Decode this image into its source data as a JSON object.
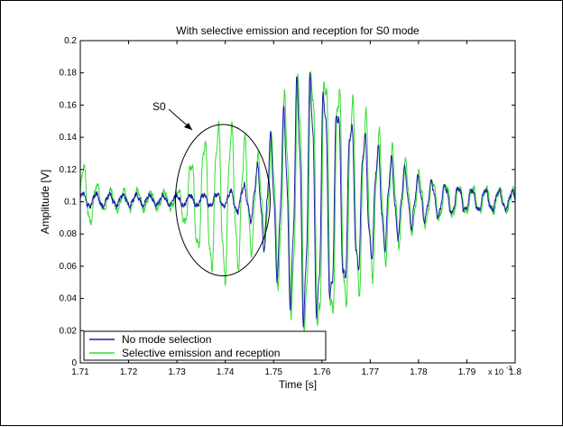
{
  "chart_data": {
    "type": "line",
    "title": "With selective emission and reception for S0 mode",
    "xlabel": "Time [s]",
    "ylabel": "Amplitude [V]",
    "x_multiplier_label": "x 10",
    "x_multiplier_exponent": "-3",
    "xlim": [
      1.71,
      1.8
    ],
    "ylim": [
      0,
      0.2
    ],
    "x_ticks": [
      "1.71",
      "1.72",
      "1.73",
      "1.74",
      "1.75",
      "1.76",
      "1.77",
      "1.78",
      "1.79",
      "1.8"
    ],
    "y_ticks": [
      "0",
      "0.02",
      "0.04",
      "0.06",
      "0.08",
      "0.1",
      "0.12",
      "0.14",
      "0.16",
      "0.18",
      "0.2"
    ],
    "grid": false,
    "legend_position": "bottom-left",
    "series": [
      {
        "name": "No mode selection",
        "color": "#1f1fa8",
        "envelope": [
          [
            1.71,
            0.004
          ],
          [
            1.73,
            0.003
          ],
          [
            1.74,
            0.004
          ],
          [
            1.745,
            0.01
          ],
          [
            1.748,
            0.028
          ],
          [
            1.752,
            0.05
          ],
          [
            1.755,
            0.07
          ],
          [
            1.758,
            0.074
          ],
          [
            1.762,
            0.064
          ],
          [
            1.765,
            0.052
          ],
          [
            1.77,
            0.035
          ],
          [
            1.775,
            0.022
          ],
          [
            1.78,
            0.013
          ],
          [
            1.785,
            0.009
          ],
          [
            1.79,
            0.007
          ],
          [
            1.8,
            0.005
          ]
        ]
      },
      {
        "name": "Selective emission and reception",
        "color": "#33dd33",
        "envelope": [
          [
            1.71,
            0.026
          ],
          [
            1.712,
            0.014
          ],
          [
            1.715,
            0.006
          ],
          [
            1.73,
            0.005
          ],
          [
            1.733,
            0.025
          ],
          [
            1.737,
            0.043
          ],
          [
            1.74,
            0.047
          ],
          [
            1.744,
            0.036
          ],
          [
            1.748,
            0.02
          ],
          [
            1.752,
            0.058
          ],
          [
            1.756,
            0.078
          ],
          [
            1.76,
            0.083
          ],
          [
            1.764,
            0.07
          ],
          [
            1.768,
            0.055
          ],
          [
            1.772,
            0.038
          ],
          [
            1.776,
            0.025
          ],
          [
            1.78,
            0.016
          ],
          [
            1.785,
            0.01
          ],
          [
            1.79,
            0.008
          ],
          [
            1.8,
            0.006
          ]
        ]
      }
    ],
    "annotations": [
      {
        "text": "S0",
        "type": "ellipse",
        "center": [
          1.7395,
          0.101
        ],
        "radii": [
          0.0098,
          0.047
        ],
        "arrow_from": [
          1.733,
          0.153
        ]
      }
    ]
  }
}
